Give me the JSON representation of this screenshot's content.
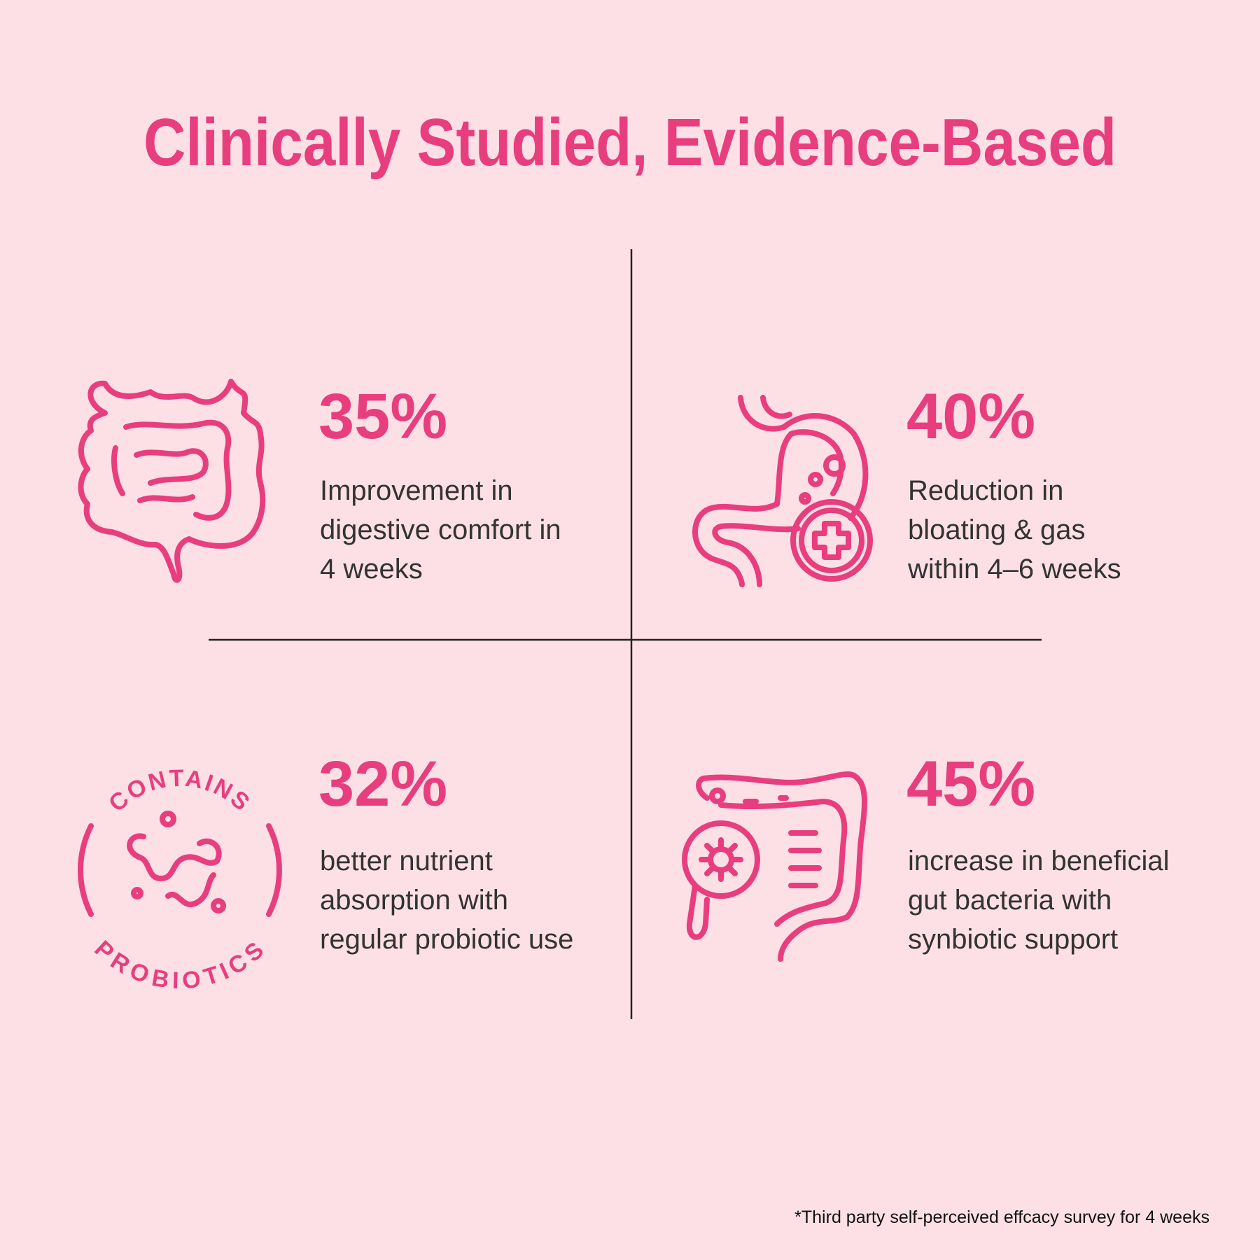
{
  "header": {
    "title": "Clinically Studied, Evidence-Based"
  },
  "stats": [
    {
      "value": "35%",
      "lines": [
        "Improvement in",
        "digestive comfort in",
        "4 weeks"
      ]
    },
    {
      "value": "40%",
      "lines": [
        "Reduction in",
        "bloating & gas",
        "within 4–6 weeks"
      ]
    },
    {
      "value": "32%",
      "lines": [
        "better nutrient",
        "absorption with",
        "regular probiotic use"
      ]
    },
    {
      "value": "45%",
      "lines": [
        "increase in beneficial",
        "gut bacteria with",
        "synbiotic support"
      ]
    }
  ],
  "badge": {
    "top": "CONTAINS",
    "bottom": "PROBIOTICS"
  },
  "footnote": "*Third party self-perceived effcacy survey for 4 weeks"
}
